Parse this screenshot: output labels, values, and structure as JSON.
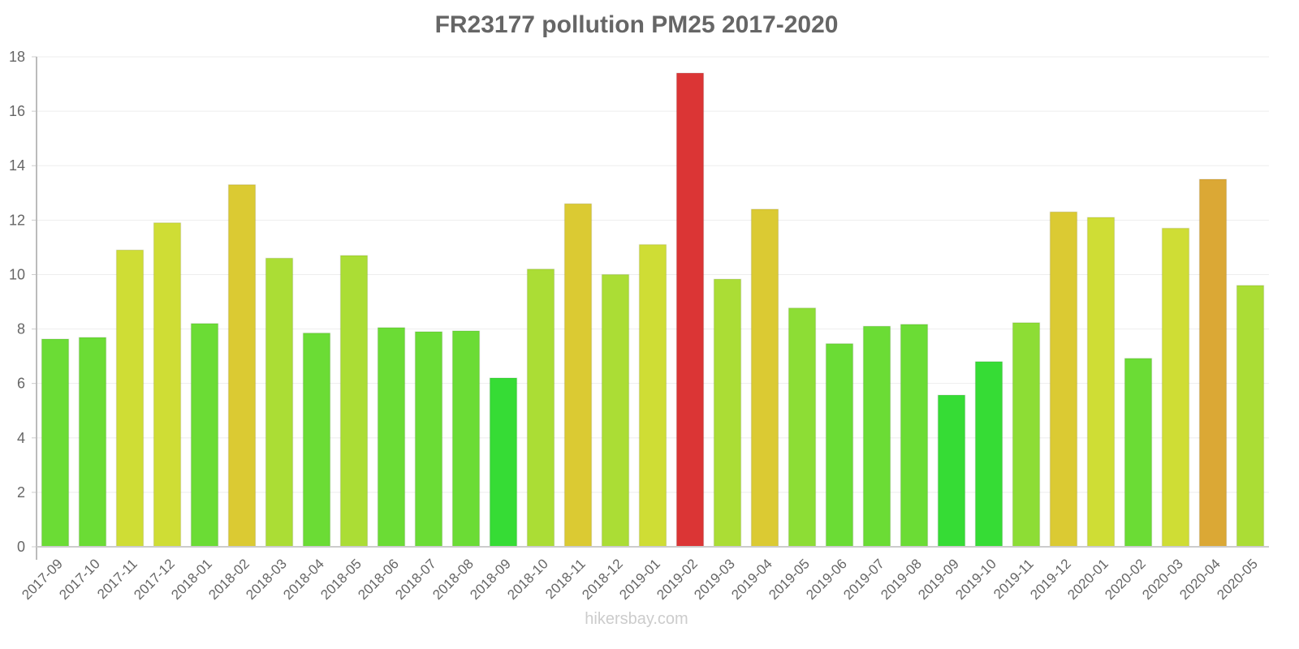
{
  "chart_data": {
    "type": "bar",
    "title": "FR23177 pollution PM25 2017-2020",
    "xlabel": "",
    "ylabel": "",
    "ylim": [
      0,
      18
    ],
    "yticks": [
      0,
      2,
      4,
      6,
      8,
      10,
      12,
      14,
      16,
      18
    ],
    "grid": true,
    "legend": null,
    "categories": [
      "2017-09",
      "2017-10",
      "2017-11",
      "2017-12",
      "2018-01",
      "2018-02",
      "2018-03",
      "2018-04",
      "2018-05",
      "2018-06",
      "2018-07",
      "2018-08",
      "2018-09",
      "2018-10",
      "2018-11",
      "2018-12",
      "2019-01",
      "2019-02",
      "2019-03",
      "2019-04",
      "2019-05",
      "2019-06",
      "2019-07",
      "2019-08",
      "2019-09",
      "2019-10",
      "2019-11",
      "2019-12",
      "2020-01",
      "2020-02",
      "2020-03",
      "2020-04",
      "2020-05"
    ],
    "values": [
      7.63,
      7.69,
      10.9,
      11.9,
      8.2,
      13.3,
      10.6,
      7.85,
      10.7,
      8.05,
      7.9,
      7.93,
      6.2,
      10.2,
      12.6,
      10.0,
      11.1,
      17.4,
      9.83,
      12.4,
      8.77,
      7.46,
      8.1,
      8.17,
      5.57,
      6.8,
      8.23,
      12.3,
      12.1,
      6.92,
      11.7,
      13.5,
      9.6
    ],
    "colors": [
      "#6bdc35",
      "#6bdc35",
      "#cfdd35",
      "#cfdd35",
      "#6bdc35",
      "#dbca33",
      "#abdd35",
      "#6bdc35",
      "#abdd35",
      "#6bdc35",
      "#6bdc35",
      "#6bdc35",
      "#36dc35",
      "#abdd35",
      "#dbca33",
      "#abdd35",
      "#cfdd35",
      "#db3535",
      "#abdd35",
      "#dbca33",
      "#8ddd35",
      "#6bdc35",
      "#6bdc35",
      "#6bdc35",
      "#36dc35",
      "#36dc35",
      "#8ddd35",
      "#dbca33",
      "#cfdd35",
      "#6bdc35",
      "#cfdd35",
      "#dba835",
      "#abdd35"
    ]
  },
  "watermark": "hikersbay.com"
}
